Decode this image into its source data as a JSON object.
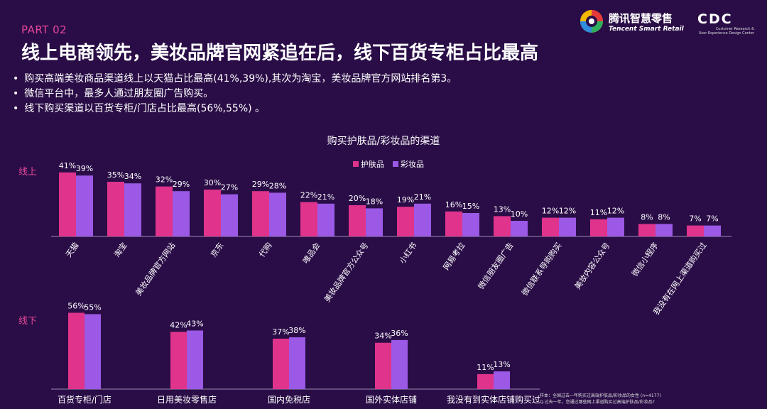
{
  "header": {
    "part": "PART 02",
    "title": "线上电商领先，美妆品牌官网紧追在后，线下百货专柜占比最高"
  },
  "bullets": [
    "购买高端美妆商品渠道线上以天猫占比最高(41%,39%),其次为淘宝，美妆品牌官方网站排名第3。",
    "微信平台中，最多人通过朋友圈广告购买。",
    "线下购买渠道以百货专柜/门店占比最高(56%,55%) 。"
  ],
  "brand": {
    "cn": "腾讯智慧零售",
    "en": "Tencent Smart Retail"
  },
  "cdc": {
    "mark": "CDC",
    "sub1": "Customer Research &",
    "sub2": "User Experience Design Center"
  },
  "footnote": {
    "line1": "样本：全国过去一年购买过高端护肤品/彩妆品的女性 (n=4177)",
    "line2": "Q.过去一年，您通过哪些网上渠道购买过高端护肤品/彩妆品?"
  },
  "colors": {
    "skincare": "#e0338c",
    "makeup": "#9b59e6",
    "background": "#2a0d47",
    "accent": "#e8479a"
  },
  "chart_data": [
    {
      "type": "bar",
      "title": "购买护肤品/彩妆品的渠道",
      "group_label": "线上",
      "categories": [
        "天猫",
        "淘宝",
        "美妆品牌官方网站",
        "京东",
        "代购",
        "唯品会",
        "美妆品牌官方公众号",
        "小红书",
        "网易考拉",
        "微信朋友圈广告",
        "微信联系导购购买",
        "美妆内容公众号",
        "微信小程序",
        "我没有在网上渠道购买过"
      ],
      "series": [
        {
          "name": "护肤品",
          "values": [
            41,
            35,
            32,
            30,
            29,
            22,
            20,
            19,
            16,
            13,
            12,
            11,
            8,
            7
          ],
          "labels": [
            "41%",
            "35%",
            "32%",
            "30%",
            "29%",
            "22%",
            "20%",
            "19%",
            "16%",
            "13%",
            "12%",
            "11%",
            "8%",
            "7%"
          ]
        },
        {
          "name": "彩妆品",
          "values": [
            39,
            34,
            29,
            27,
            28,
            21,
            18,
            21,
            15,
            10,
            12,
            12,
            8,
            7
          ],
          "labels": [
            "39%",
            "34%",
            "29%",
            "27%",
            "28%",
            "21%",
            "18%",
            "21%",
            "15%",
            "10%",
            "12%",
            "12%",
            "8%",
            "7%"
          ]
        }
      ],
      "legend": "top-center"
    },
    {
      "type": "bar",
      "group_label": "线下",
      "categories": [
        "百货专柜/门店",
        "日用美妆零售店",
        "国内免税店",
        "国外实体店铺",
        "我没有到实体店铺购买过"
      ],
      "series": [
        {
          "name": "护肤品",
          "values": [
            56,
            42,
            37,
            34,
            11
          ],
          "labels": [
            "56%",
            "42%",
            "37%",
            "34%",
            "11%"
          ]
        },
        {
          "name": "彩妆品",
          "values": [
            55,
            43,
            38,
            36,
            13
          ],
          "labels": [
            "55%",
            "43%",
            "38%",
            "36%",
            "13%"
          ]
        }
      ]
    }
  ]
}
